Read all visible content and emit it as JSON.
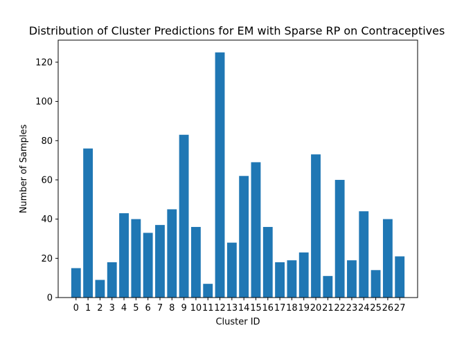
{
  "chart_data": {
    "type": "bar",
    "title": "Distribution of Cluster Predictions for EM with Sparse RP on Contraceptives",
    "xlabel": "Cluster ID",
    "ylabel": "Number of Samples",
    "categories": [
      "0",
      "1",
      "2",
      "3",
      "4",
      "5",
      "6",
      "7",
      "8",
      "9",
      "10",
      "11",
      "12",
      "13",
      "14",
      "15",
      "16",
      "17",
      "18",
      "19",
      "20",
      "21",
      "22",
      "23",
      "24",
      "25",
      "26",
      "27"
    ],
    "values": [
      15,
      76,
      9,
      18,
      43,
      40,
      33,
      37,
      45,
      83,
      36,
      7,
      125,
      28,
      62,
      69,
      36,
      18,
      19,
      23,
      73,
      11,
      60,
      19,
      44,
      14,
      40,
      21
    ],
    "ylim": [
      0,
      131.25
    ],
    "yticks": [
      0,
      20,
      40,
      60,
      80,
      100,
      120
    ],
    "bar_color": "#1f77b4",
    "grid": false,
    "legend": "none"
  }
}
